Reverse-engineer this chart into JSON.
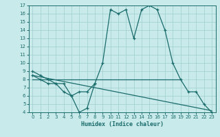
{
  "xlabel": "Humidex (Indice chaleur)",
  "bg_color": "#c8eaea",
  "line_color": "#1a6b6b",
  "grid_color": "#a0cccc",
  "xlim": [
    -0.5,
    23.5
  ],
  "ylim": [
    4,
    17
  ],
  "xticks": [
    0,
    1,
    2,
    3,
    4,
    5,
    6,
    7,
    8,
    9,
    10,
    11,
    12,
    13,
    14,
    15,
    16,
    17,
    18,
    19,
    20,
    21,
    22,
    23
  ],
  "yticks": [
    4,
    5,
    6,
    7,
    8,
    9,
    10,
    11,
    12,
    13,
    14,
    15,
    16,
    17
  ],
  "curve_main": {
    "x": [
      0,
      1,
      2,
      3,
      4,
      5,
      6,
      7,
      8,
      9,
      10,
      11,
      12,
      13,
      14,
      15,
      16,
      17,
      18,
      19,
      20,
      21,
      22,
      23
    ],
    "y": [
      9.0,
      8.5,
      8.0,
      7.5,
      7.5,
      6.0,
      6.5,
      6.5,
      7.5,
      10.0,
      16.5,
      16.0,
      16.5,
      13.0,
      16.5,
      17.0,
      16.5,
      14.0,
      10.0,
      8.0,
      6.5,
      6.5,
      5.0,
      4.0
    ]
  },
  "curve_lower": {
    "x": [
      0,
      1,
      2,
      3,
      4,
      5,
      6,
      7,
      8
    ],
    "y": [
      8.5,
      8.0,
      7.5,
      7.5,
      6.5,
      6.0,
      4.0,
      4.5,
      7.5
    ]
  },
  "curve_flat": {
    "x": [
      0,
      19
    ],
    "y": [
      8.0,
      8.0
    ]
  },
  "curve_diag": {
    "x": [
      0,
      23
    ],
    "y": [
      8.5,
      4.2
    ]
  }
}
